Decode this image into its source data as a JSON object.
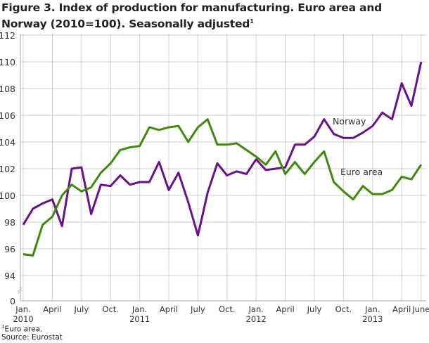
{
  "title": "Figure 3. Index of production for manufacturing. Euro area and Norway (2010=100). Seasonally adjusted",
  "title_footnote_mark": "1",
  "footnote": {
    "mark": "1",
    "text": "Euro area."
  },
  "source": "Source: Eurostat",
  "chart_data": {
    "type": "line",
    "title": "Figure 3. Index of production for manufacturing. Euro area and Norway (2010=100). Seasonally adjusted",
    "xlabel": "",
    "ylabel": "",
    "x_start": "2010-01",
    "x_end": "2013-06",
    "ylim": [
      94,
      112
    ],
    "y_axis_break": true,
    "y_ticks": [
      "0",
      "94",
      "96",
      "98",
      "100",
      "102",
      "104",
      "106",
      "108",
      "110",
      "112"
    ],
    "x_ticks": [
      {
        "label": "Jan.",
        "year": "2010"
      },
      {
        "label": "April"
      },
      {
        "label": "July"
      },
      {
        "label": "Oct."
      },
      {
        "label": "Jan.",
        "year": "2011"
      },
      {
        "label": "April"
      },
      {
        "label": "July"
      },
      {
        "label": "Oct."
      },
      {
        "label": "Jan.",
        "year": "2012"
      },
      {
        "label": "April"
      },
      {
        "label": "July"
      },
      {
        "label": "Oct."
      },
      {
        "label": "Jan.",
        "year": "2013"
      },
      {
        "label": "April"
      },
      {
        "label": "June"
      }
    ],
    "x_tick_months": [
      "2010-01",
      "2010-04",
      "2010-07",
      "2010-10",
      "2011-01",
      "2011-04",
      "2011-07",
      "2011-10",
      "2012-01",
      "2012-04",
      "2012-07",
      "2012-10",
      "2013-01",
      "2013-04",
      "2013-06"
    ],
    "grid": true,
    "legend": "inline labels",
    "series": [
      {
        "name": "Norway",
        "color": "#6a0f8e",
        "values": [
          97.8,
          99.0,
          99.4,
          99.7,
          97.7,
          102.0,
          102.1,
          98.6,
          100.8,
          100.7,
          101.5,
          100.8,
          101.0,
          101.0,
          102.5,
          100.4,
          101.7,
          99.5,
          97.0,
          100.2,
          102.4,
          101.5,
          101.8,
          101.6,
          102.7,
          101.9,
          102.0,
          102.1,
          103.8,
          103.8,
          104.4,
          105.7,
          104.6,
          104.3,
          104.3,
          104.7,
          105.2,
          106.2,
          105.7,
          108.4,
          106.7,
          110.0
        ]
      },
      {
        "name": "Euro area",
        "color": "#3f8a0b",
        "values": [
          95.6,
          95.5,
          97.8,
          98.4,
          100.0,
          100.8,
          100.3,
          100.6,
          101.7,
          102.4,
          103.4,
          103.6,
          103.7,
          105.1,
          104.9,
          105.1,
          105.2,
          104.0,
          105.1,
          105.7,
          103.8,
          103.8,
          103.9,
          103.4,
          102.9,
          102.3,
          103.3,
          101.6,
          102.5,
          101.6,
          102.5,
          103.3,
          101.0,
          100.3,
          99.7,
          100.7,
          100.1,
          100.1,
          100.4,
          101.4,
          101.2,
          102.3
        ]
      }
    ]
  }
}
